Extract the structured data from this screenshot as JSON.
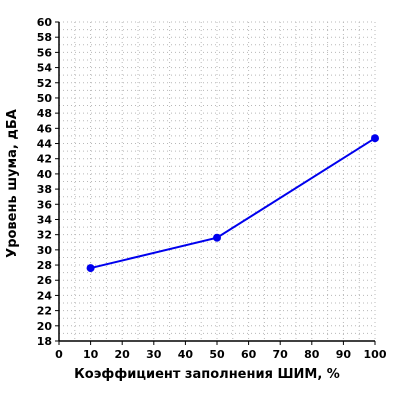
{
  "chart_data": {
    "type": "line",
    "title": "",
    "xlabel": "Коэффициент заполнения ШИМ, %",
    "ylabel": "Уровень шума, дБА",
    "xlim": [
      0,
      100
    ],
    "ylim": [
      18,
      60
    ],
    "x_ticks": [
      "0",
      "10",
      "20",
      "30",
      "40",
      "50",
      "60",
      "70",
      "80",
      "90",
      "100"
    ],
    "y_ticks": [
      "18",
      "20",
      "22",
      "24",
      "26",
      "28",
      "30",
      "32",
      "34",
      "36",
      "38",
      "40",
      "42",
      "44",
      "46",
      "48",
      "50",
      "52",
      "54",
      "56",
      "58",
      "60"
    ],
    "grid": true,
    "grid_style": "dotted",
    "legend": "none",
    "series": [
      {
        "color": "#0000ee",
        "x": [
          10,
          50,
          100
        ],
        "y": [
          27.6,
          31.6,
          44.7
        ]
      }
    ]
  }
}
